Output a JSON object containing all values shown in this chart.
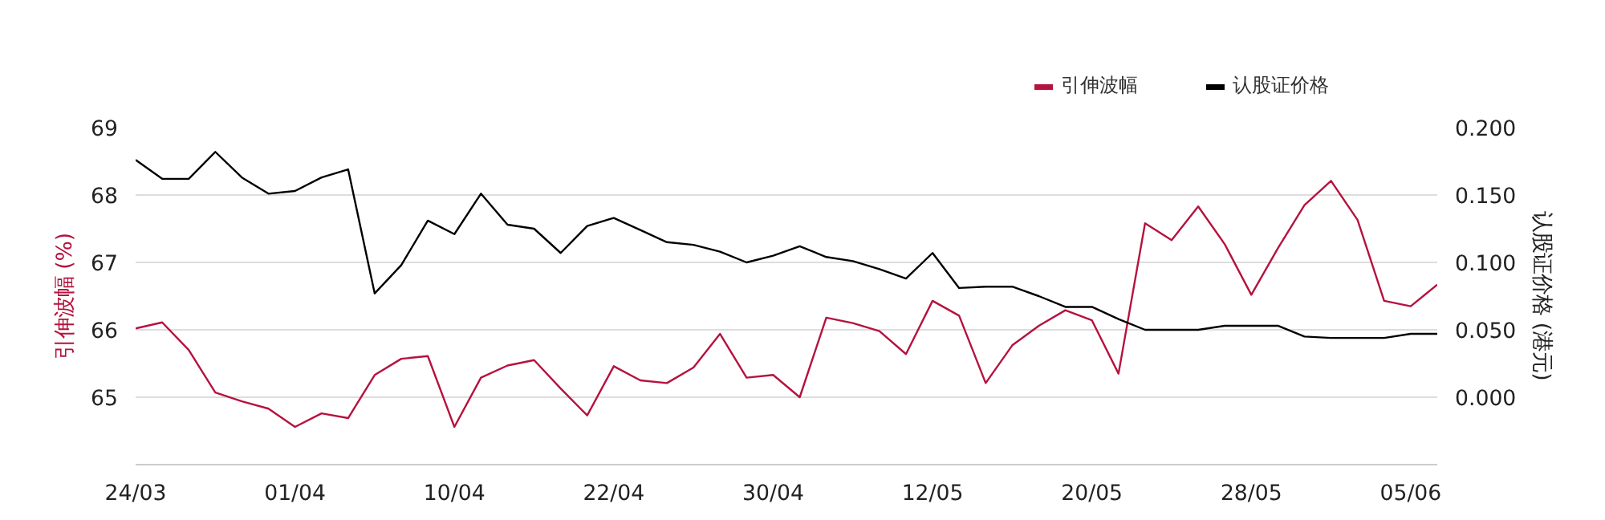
{
  "chart_data": {
    "type": "line",
    "ylabel": "引伸波幅 (%)",
    "y2label": "认股证价格 (港元)",
    "categories": [
      "24/03",
      null,
      null,
      null,
      null,
      null,
      "01/04",
      null,
      null,
      null,
      null,
      null,
      "10/04",
      null,
      null,
      null,
      null,
      null,
      "22/04",
      null,
      null,
      null,
      null,
      null,
      "30/04",
      null,
      null,
      null,
      null,
      null,
      "12/05",
      null,
      null,
      null,
      null,
      null,
      "20/05",
      null,
      null,
      null,
      null,
      null,
      "28/05",
      null,
      null,
      null,
      null,
      null,
      "05/06",
      null
    ],
    "series": [
      {
        "name": "引伸波幅",
        "color": "#b5123e",
        "values": [
          66.02,
          66.11,
          65.7,
          65.07,
          64.94,
          64.83,
          64.56,
          64.76,
          64.69,
          65.33,
          65.57,
          65.61,
          64.56,
          65.29,
          65.47,
          65.55,
          65.13,
          64.73,
          65.46,
          65.25,
          65.21,
          65.44,
          65.94,
          65.29,
          65.33,
          65.0,
          66.18,
          66.1,
          65.98,
          65.64,
          66.43,
          66.21,
          65.21,
          65.77,
          66.06,
          66.29,
          66.14,
          65.35,
          67.58,
          67.33,
          67.83,
          67.27,
          66.52,
          67.21,
          67.85,
          68.21,
          67.63,
          66.43,
          66.35,
          66.67
        ]
      },
      {
        "name": "认股证价格",
        "color": "#000000",
        "axis": "y2",
        "values": [
          0.176,
          0.162,
          0.162,
          0.182,
          0.163,
          0.151,
          0.153,
          0.163,
          0.169,
          0.077,
          0.098,
          0.131,
          0.121,
          0.151,
          0.128,
          0.125,
          0.107,
          0.127,
          0.133,
          0.124,
          0.115,
          0.113,
          0.108,
          0.1,
          0.105,
          0.112,
          0.104,
          0.101,
          0.095,
          0.088,
          0.107,
          0.081,
          0.082,
          0.082,
          0.075,
          0.067,
          0.067,
          0.058,
          0.05,
          0.05,
          0.05,
          0.053,
          0.053,
          0.053,
          0.045,
          0.044,
          0.044,
          0.044,
          0.047,
          0.047
        ]
      }
    ],
    "ylim": [
      64,
      69
    ],
    "yticks": [
      65,
      66,
      67,
      68,
      69
    ],
    "y2lim": [
      -0.05,
      0.2
    ],
    "y2ticks": [
      {
        "value": 0,
        "label": "0.000"
      },
      {
        "value": 0.05,
        "label": "0.050"
      },
      {
        "value": 0.1,
        "label": "0.100"
      },
      {
        "value": 0.15,
        "label": "0.150"
      },
      {
        "value": 0.2,
        "label": "0.200"
      }
    ],
    "grid": "y",
    "legend": "top right",
    "marker": "none",
    "line_style": "solid"
  }
}
